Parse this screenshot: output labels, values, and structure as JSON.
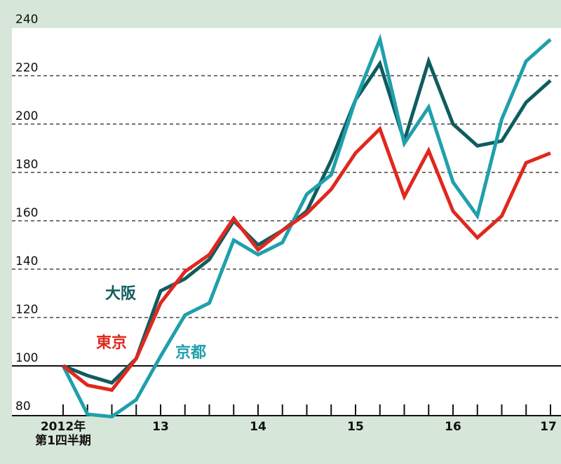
{
  "chart_data": {
    "type": "line",
    "y_ticks": [
      80,
      100,
      120,
      140,
      160,
      180,
      200,
      220,
      240
    ],
    "ylim": [
      78,
      242
    ],
    "x_range": [
      0,
      25
    ],
    "x_tick_labels": [
      {
        "x": 0,
        "lines": [
          "2012年",
          "第1四半期"
        ]
      },
      {
        "x": 4,
        "lines": [
          "13"
        ]
      },
      {
        "x": 8,
        "lines": [
          "14"
        ]
      },
      {
        "x": 12,
        "lines": [
          "15"
        ]
      },
      {
        "x": 16,
        "lines": [
          "16"
        ]
      },
      {
        "x": 20,
        "lines": [
          "17"
        ]
      }
    ],
    "x_tick_marks": [
      0,
      1,
      2,
      3,
      4,
      5,
      6,
      7,
      8,
      9,
      10,
      11,
      12,
      13,
      14,
      15,
      16,
      17,
      18,
      19,
      20
    ],
    "baseline": 100,
    "dashed_grid": [
      120,
      140,
      160,
      180,
      200,
      220
    ],
    "series": [
      {
        "name": "大阪",
        "color": "#0f5c5e",
        "values": [
          100,
          96,
          93,
          103,
          131,
          136,
          144,
          160,
          150,
          156,
          164,
          185,
          210,
          225,
          193,
          226,
          200,
          191,
          193,
          209,
          218
        ]
      },
      {
        "name": "京都",
        "color": "#1fa0ab",
        "values": [
          100,
          80,
          79,
          86,
          104,
          121,
          126,
          152,
          146,
          151,
          171,
          179,
          210,
          235,
          192,
          207,
          176,
          162,
          202,
          226,
          235
        ]
      },
      {
        "name": "東京",
        "color": "#e0281e",
        "values": [
          100,
          92,
          90,
          103,
          126,
          139,
          146,
          161,
          148,
          156,
          163,
          173,
          188,
          198,
          170,
          189,
          164,
          153,
          162,
          184,
          188
        ]
      }
    ]
  },
  "labels": {
    "osaka": "大阪",
    "tokyo": "東京",
    "kyoto": "京都"
  },
  "colors": {
    "background": "#d6e6d9",
    "plot_background": "#ffffff",
    "osaka": "#0f5c5e",
    "kyoto": "#1fa0ab",
    "tokyo": "#e0281e"
  }
}
